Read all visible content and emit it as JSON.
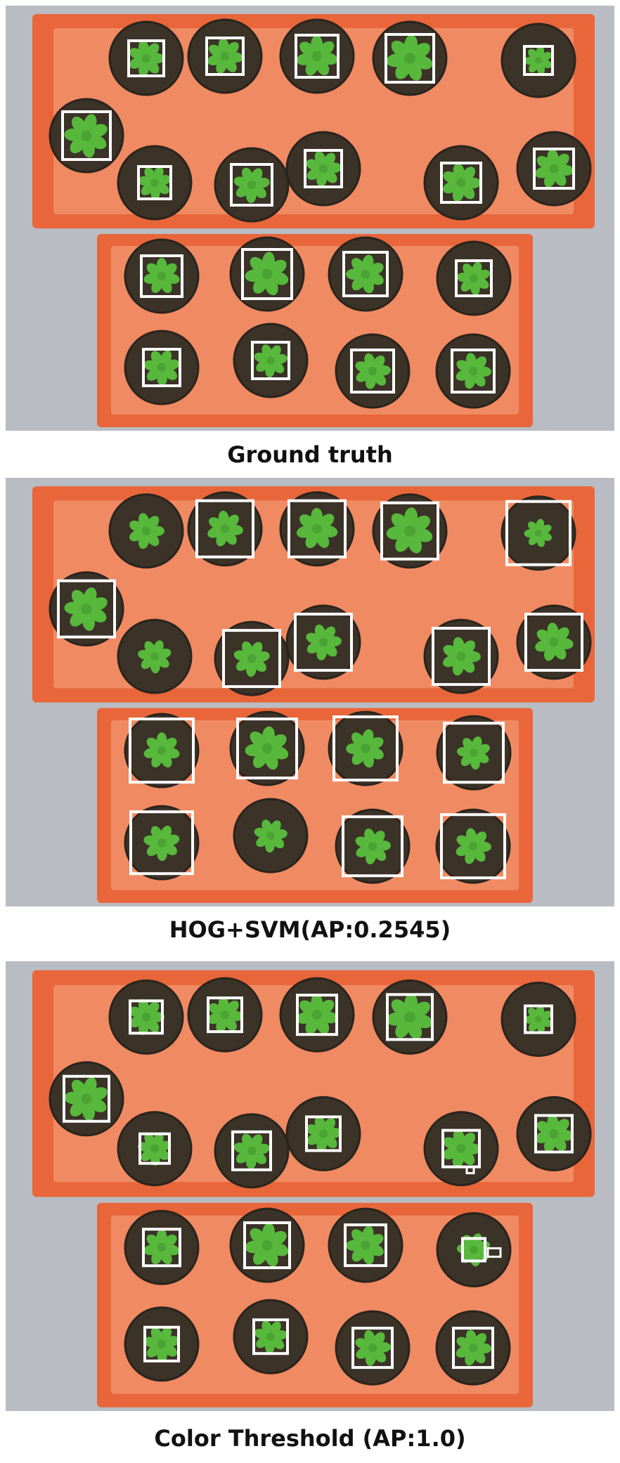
{
  "figure": {
    "panels": [
      {
        "caption": "Ground truth"
      },
      {
        "caption": "HOG+SVM(AP:0.2545)"
      },
      {
        "caption": "Color Threshold (AP:1.0)"
      }
    ]
  },
  "colors": {
    "background_gray": "#b9bcc2",
    "tray_orange": "#e8663a",
    "tray_inner": "#f08a62",
    "soil": "#3b3228",
    "plant_green": "#57b83c",
    "box_white": "#ffffff"
  }
}
